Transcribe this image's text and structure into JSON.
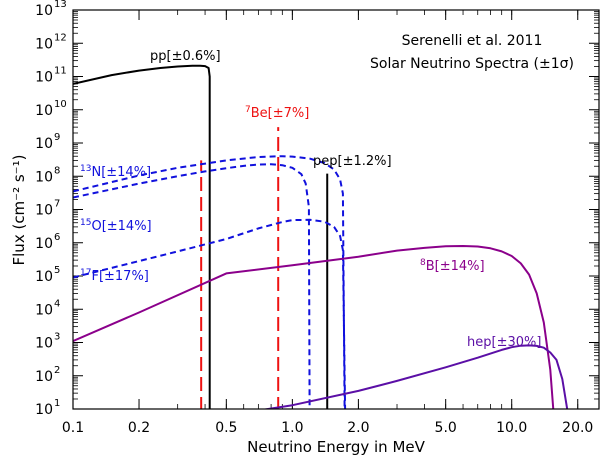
{
  "chart_data": {
    "type": "line",
    "title_lines": [
      "Serenelli et al. 2011",
      "Solar Neutrino Spectra (±1σ)"
    ],
    "xlabel": "Neutrino Energy in MeV",
    "ylabel": "Flux (cm⁻² s⁻¹)",
    "xscale": "log",
    "yscale": "log",
    "xlim": [
      0.1,
      25
    ],
    "ylim_exp": [
      1,
      13
    ],
    "x_ticks": [
      {
        "v": 0.1,
        "label": "0.1"
      },
      {
        "v": 0.2,
        "label": "0.2"
      },
      {
        "v": 0.5,
        "label": "0.5"
      },
      {
        "v": 1.0,
        "label": "1.0"
      },
      {
        "v": 2.0,
        "label": "2.0"
      },
      {
        "v": 5.0,
        "label": "5.0"
      },
      {
        "v": 10.0,
        "label": "10.0"
      },
      {
        "v": 20.0,
        "label": "20.0"
      }
    ],
    "y_tick_exponents": [
      1,
      2,
      3,
      4,
      5,
      6,
      7,
      8,
      9,
      10,
      11,
      12,
      13
    ],
    "y_tick_base": "10",
    "series": [
      {
        "name": "pp",
        "color": "#000000",
        "dash": "solid",
        "x": [
          0.1,
          0.15,
          0.2,
          0.25,
          0.3,
          0.35,
          0.38,
          0.4,
          0.415,
          0.42,
          0.42
        ],
        "y": [
          60000000000.0,
          110000000000.0,
          150000000000.0,
          180000000000.0,
          200000000000.0,
          210000000000.0,
          210000000000.0,
          205000000000.0,
          180000000000.0,
          100000000000.0,
          10
        ]
      },
      {
        "name": "7Be",
        "color": "#ee1111",
        "dash": "long",
        "lines_x": [
          0.384,
          0.862
        ],
        "lines_y_top": [
          300000000.0,
          3000000000.0
        ]
      },
      {
        "name": "pep",
        "color": "#000000",
        "dash": "solid",
        "lines_x": [
          1.442
        ],
        "lines_y_top": [
          120000000.0
        ]
      },
      {
        "name": "13N",
        "color": "#1111dd",
        "dash": "short",
        "x": [
          0.1,
          0.2,
          0.3,
          0.4,
          0.5,
          0.6,
          0.7,
          0.8,
          0.9,
          1.0,
          1.1,
          1.15,
          1.19,
          1.199
        ],
        "y": [
          23000000.0,
          60000000.0,
          100000000.0,
          140000000.0,
          175000000.0,
          205000000.0,
          225000000.0,
          230000000.0,
          215000000.0,
          180000000.0,
          115000000.0,
          60000000.0,
          12000000.0,
          10
        ]
      },
      {
        "name": "15O",
        "color": "#1111dd",
        "dash": "short",
        "x": [
          0.1,
          0.2,
          0.3,
          0.5,
          0.7,
          0.9,
          1.0,
          1.2,
          1.4,
          1.55,
          1.65,
          1.7,
          1.73
        ],
        "y": [
          35000000.0,
          105000000.0,
          180000000.0,
          300000000.0,
          380000000.0,
          400000000.0,
          390000000.0,
          340000000.0,
          250000000.0,
          160000000.0,
          80000000.0,
          30000000.0,
          10
        ]
      },
      {
        "name": "17F",
        "color": "#1111dd",
        "dash": "short",
        "x": [
          0.1,
          0.2,
          0.3,
          0.5,
          0.7,
          0.9,
          1.0,
          1.2,
          1.4,
          1.55,
          1.65,
          1.7,
          1.74
        ],
        "y": [
          90000.0,
          280000.0,
          550000.0,
          1300000.0,
          2700000.0,
          4200000.0,
          4800000.0,
          4900000.0,
          4300000.0,
          3000000.0,
          1600000.0,
          600000.0,
          10
        ]
      },
      {
        "name": "8B",
        "color": "#8b008b",
        "dash": "solid",
        "x": [
          0.1,
          0.2,
          0.5,
          1.0,
          2.0,
          3.0,
          4.0,
          5.0,
          6.0,
          7.0,
          8.0,
          9.0,
          10.0,
          11.0,
          12.0,
          13.0,
          14.0,
          15.0,
          15.5,
          16.0
        ],
        "y": [
          1100.0,
          8000.0,
          120000.0,
          210000.0,
          380000.0,
          580000.0,
          700000.0,
          780000.0,
          800000.0,
          770000.0,
          680000.0,
          550000.0,
          400000.0,
          240000.0,
          110000.0,
          30000.0,
          4000.0,
          150.0,
          8,
          1.0
        ]
      },
      {
        "name": "hep",
        "color": "#5b0fa6",
        "dash": "solid",
        "x": [
          0.45,
          0.7,
          1.0,
          2.0,
          3.0,
          5.0,
          7.0,
          9.0,
          10.0,
          11.0,
          12.0,
          13.0,
          14.0,
          15.0,
          16.0,
          17.0,
          18.0,
          18.6
        ],
        "y": [
          5,
          9,
          13,
          35,
          70,
          180,
          350,
          600,
          720,
          800,
          820,
          790,
          700,
          500,
          300,
          80,
          8,
          1
        ]
      }
    ],
    "annotations": {
      "pp": {
        "pre": "",
        "sup": "",
        "name": "pp",
        "pct": "[±0.6%]"
      },
      "Be7": {
        "pre": "",
        "sup": "7",
        "name": "Be",
        "pct": "[±7%]"
      },
      "pep": {
        "pre": "",
        "sup": "",
        "name": "pep",
        "pct": "[±1.2%]"
      },
      "N13": {
        "pre": "",
        "sup": "13",
        "name": "N",
        "pct": "[±14%]"
      },
      "O15": {
        "pre": "",
        "sup": "15",
        "name": "O",
        "pct": "[±14%]"
      },
      "F17": {
        "pre": "",
        "sup": "17",
        "name": "F",
        "pct": "[±17%]"
      },
      "B8": {
        "pre": "",
        "sup": "8",
        "name": "B",
        "pct": "[±14%]"
      },
      "hep": {
        "pre": "",
        "sup": "",
        "name": "hep",
        "pct": "[±30%]"
      }
    }
  }
}
